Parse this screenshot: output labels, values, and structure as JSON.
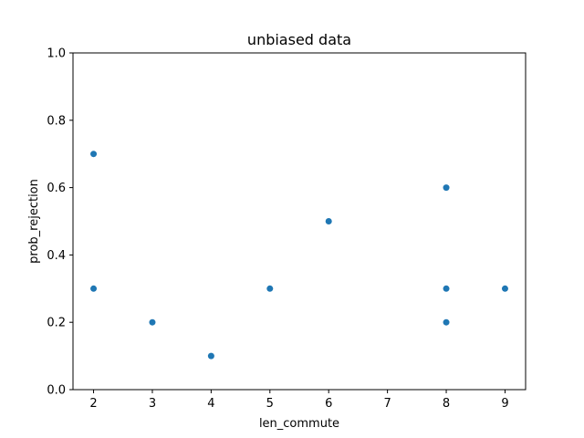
{
  "chart_data": {
    "type": "scatter",
    "title": "unbiased data",
    "xlabel": "len_commute",
    "ylabel": "prob_rejection",
    "xlim": [
      1.65,
      9.35
    ],
    "ylim": [
      0.0,
      1.0
    ],
    "xticks": [
      2,
      3,
      4,
      5,
      6,
      7,
      8,
      9
    ],
    "yticks": [
      0.0,
      0.2,
      0.4,
      0.6,
      0.8,
      1.0
    ],
    "xtick_labels": [
      "2",
      "3",
      "4",
      "5",
      "6",
      "7",
      "8",
      "9"
    ],
    "ytick_labels": [
      "0.0",
      "0.2",
      "0.4",
      "0.6",
      "0.8",
      "1.0"
    ],
    "grid": false,
    "marker_color": "#1f77b4",
    "points": [
      {
        "x": 2,
        "y": 0.7
      },
      {
        "x": 2,
        "y": 0.3
      },
      {
        "x": 3,
        "y": 0.2
      },
      {
        "x": 4,
        "y": 0.1
      },
      {
        "x": 5,
        "y": 0.3
      },
      {
        "x": 6,
        "y": 0.5
      },
      {
        "x": 8,
        "y": 0.6
      },
      {
        "x": 8,
        "y": 0.3
      },
      {
        "x": 8,
        "y": 0.2
      },
      {
        "x": 9,
        "y": 0.3
      }
    ]
  }
}
